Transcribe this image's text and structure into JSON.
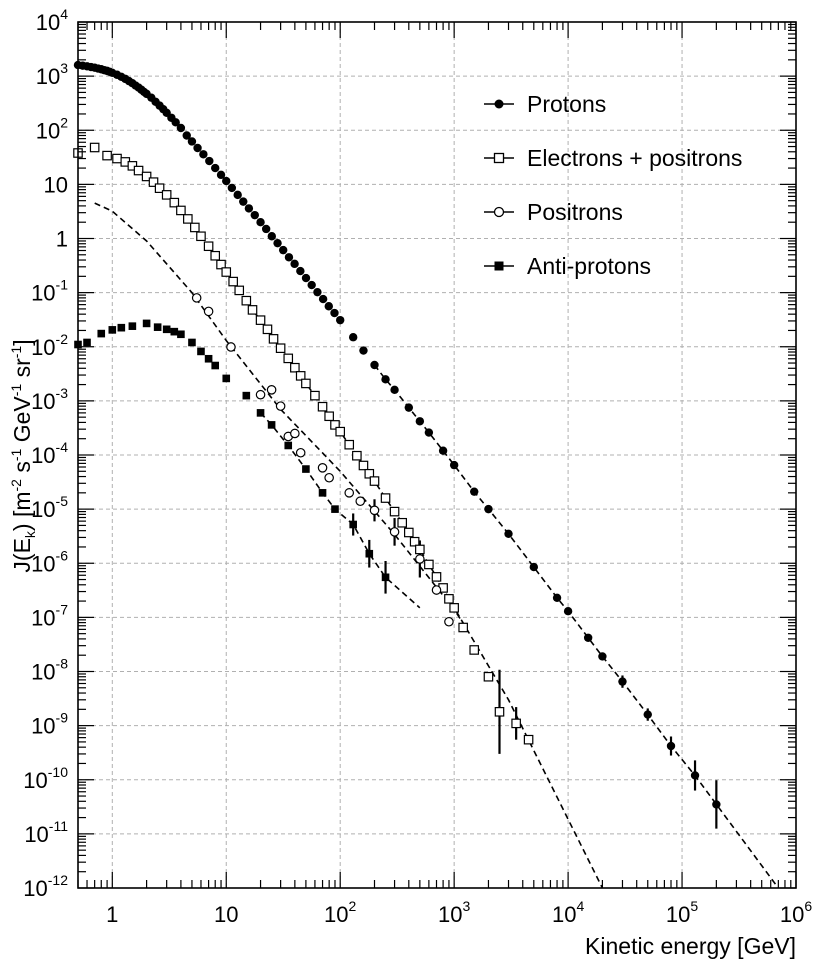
{
  "chart_data": {
    "type": "scatter",
    "xscale": "log",
    "yscale": "log",
    "xlim": [
      0.5,
      1000000
    ],
    "ylim": [
      1e-12,
      10000
    ],
    "xlabel": "Kinetic energy [GeV]",
    "ylabel": "J(E_k) [m^-2 s^-1 GeV^-1 sr^-1]",
    "ylabel_parts": {
      "base": "J(E",
      "sub": "k",
      "close": ")  [m",
      "s1": "-2",
      "s": " s",
      "s2": "-1",
      "gev": " GeV",
      "s3": "-1",
      "sr": " sr",
      "s4": "-1",
      "end": "]"
    },
    "x_ticks": [
      {
        "value": 1,
        "base": "1",
        "exp": ""
      },
      {
        "value": 10,
        "base": "10",
        "exp": ""
      },
      {
        "value": 100,
        "base": "10",
        "exp": "2"
      },
      {
        "value": 1000,
        "base": "10",
        "exp": "3"
      },
      {
        "value": 10000,
        "base": "10",
        "exp": "4"
      },
      {
        "value": 100000,
        "base": "10",
        "exp": "5"
      },
      {
        "value": 1000000,
        "base": "10",
        "exp": "6"
      }
    ],
    "y_ticks": [
      {
        "value": 10000,
        "base": "10",
        "exp": "4"
      },
      {
        "value": 1000,
        "base": "10",
        "exp": "3"
      },
      {
        "value": 100,
        "base": "10",
        "exp": "2"
      },
      {
        "value": 10,
        "base": "10",
        "exp": ""
      },
      {
        "value": 1,
        "base": "1",
        "exp": ""
      },
      {
        "value": 0.1,
        "base": "10",
        "exp": "-1"
      },
      {
        "value": 0.01,
        "base": "10",
        "exp": "-2"
      },
      {
        "value": 0.001,
        "base": "10",
        "exp": "-3"
      },
      {
        "value": 0.0001,
        "base": "10",
        "exp": "-4"
      },
      {
        "value": 1e-05,
        "base": "10",
        "exp": "-5"
      },
      {
        "value": 1e-06,
        "base": "10",
        "exp": "-6"
      },
      {
        "value": 1e-07,
        "base": "10",
        "exp": "-7"
      },
      {
        "value": 1e-08,
        "base": "10",
        "exp": "-8"
      },
      {
        "value": 1e-09,
        "base": "10",
        "exp": "-9"
      },
      {
        "value": 1e-10,
        "base": "10",
        "exp": "-10"
      },
      {
        "value": 1e-11,
        "base": "10",
        "exp": "-11"
      },
      {
        "value": 1e-12,
        "base": "10",
        "exp": "-12"
      }
    ],
    "grid": true,
    "legend_position": "top-right",
    "series": [
      {
        "name": "Protons",
        "marker": "filled-circle",
        "points": [
          [
            0.5,
            1600
          ],
          [
            0.55,
            1560
          ],
          [
            0.6,
            1520
          ],
          [
            0.65,
            1470
          ],
          [
            0.7,
            1430
          ],
          [
            0.75,
            1380
          ],
          [
            0.8,
            1340
          ],
          [
            0.85,
            1290
          ],
          [
            0.9,
            1250
          ],
          [
            0.95,
            1200
          ],
          [
            1.0,
            1150
          ],
          [
            1.1,
            1060
          ],
          [
            1.2,
            970
          ],
          [
            1.3,
            890
          ],
          [
            1.4,
            810
          ],
          [
            1.5,
            740
          ],
          [
            1.6,
            670
          ],
          [
            1.7,
            615
          ],
          [
            1.8,
            560
          ],
          [
            1.9,
            510
          ],
          [
            2.0,
            470
          ],
          [
            2.2,
            400
          ],
          [
            2.4,
            335
          ],
          [
            2.6,
            285
          ],
          [
            2.8,
            245
          ],
          [
            3.0,
            210
          ],
          [
            3.3,
            170
          ],
          [
            3.6,
            140
          ],
          [
            4.0,
            110
          ],
          [
            4.5,
            80
          ],
          [
            5.0,
            62
          ],
          [
            5.6,
            47
          ],
          [
            6.3,
            36
          ],
          [
            7.1,
            27
          ],
          [
            8.0,
            20
          ],
          [
            9.0,
            15
          ],
          [
            10,
            11.5
          ],
          [
            11.2,
            8.6
          ],
          [
            12.6,
            6.4
          ],
          [
            14.1,
            4.8
          ],
          [
            15.8,
            3.6
          ],
          [
            17.8,
            2.7
          ],
          [
            20,
            2.0
          ],
          [
            22.4,
            1.5
          ],
          [
            25.1,
            1.1
          ],
          [
            28.2,
            0.82
          ],
          [
            31.6,
            0.61
          ],
          [
            35.5,
            0.45
          ],
          [
            39.8,
            0.34
          ],
          [
            44.7,
            0.25
          ],
          [
            50.1,
            0.186
          ],
          [
            56.2,
            0.138
          ],
          [
            63.1,
            0.102
          ],
          [
            70.8,
            0.076
          ],
          [
            79.4,
            0.056
          ],
          [
            89.1,
            0.042
          ],
          [
            100,
            0.031
          ],
          [
            130,
            0.015
          ],
          [
            160,
            0.0085
          ],
          [
            200,
            0.0046
          ],
          [
            250,
            0.0025
          ],
          [
            300,
            0.0016
          ],
          [
            400,
            0.00075
          ],
          [
            500,
            0.00042
          ],
          [
            600,
            0.00026
          ],
          [
            800,
            0.00012
          ],
          [
            1000,
            6.5e-05
          ],
          [
            1500,
            2.1e-05
          ],
          [
            2000,
            1e-05
          ],
          [
            3000,
            3.5e-06
          ],
          [
            5000,
            8.5e-07
          ],
          [
            8000,
            2.3e-07
          ],
          [
            10000,
            1.3e-07
          ],
          [
            15000,
            4.2e-08
          ],
          [
            20000,
            1.9e-08
          ],
          [
            30000,
            6.5e-09
          ],
          [
            50000,
            1.6e-09
          ],
          [
            80000,
            4.2e-10
          ],
          [
            130000,
            1.2e-10
          ],
          [
            200000,
            3.5e-11
          ]
        ],
        "errors": [
          [
            30000,
            1.3
          ],
          [
            50000,
            1.3
          ],
          [
            80000,
            1.5
          ],
          [
            130000,
            1.9
          ],
          [
            200000,
            2.8
          ]
        ]
      },
      {
        "name": "Electrons + positrons",
        "marker": "open-square",
        "points": [
          [
            0.5,
            38
          ],
          [
            0.7,
            48
          ],
          [
            0.9,
            34
          ],
          [
            1.1,
            30
          ],
          [
            1.3,
            26
          ],
          [
            1.5,
            22
          ],
          [
            1.7,
            18
          ],
          [
            2.0,
            14
          ],
          [
            2.3,
            11
          ],
          [
            2.6,
            8.5
          ],
          [
            3.0,
            6.4
          ],
          [
            3.5,
            4.6
          ],
          [
            4.0,
            3.3
          ],
          [
            4.6,
            2.3
          ],
          [
            5.3,
            1.6
          ],
          [
            6.0,
            1.1
          ],
          [
            7.0,
            0.72
          ],
          [
            8.0,
            0.48
          ],
          [
            9.0,
            0.33
          ],
          [
            10,
            0.24
          ],
          [
            11.5,
            0.16
          ],
          [
            13,
            0.11
          ],
          [
            15,
            0.071
          ],
          [
            17,
            0.048
          ],
          [
            20,
            0.031
          ],
          [
            23,
            0.021
          ],
          [
            26,
            0.014
          ],
          [
            30,
            0.0094
          ],
          [
            35,
            0.0061
          ],
          [
            40,
            0.0041
          ],
          [
            45,
            0.0029
          ],
          [
            50,
            0.0021
          ],
          [
            60,
            0.00125
          ],
          [
            70,
            0.00078
          ],
          [
            80,
            0.00052
          ],
          [
            90,
            0.00036
          ],
          [
            100,
            0.00027
          ],
          [
            120,
            0.000155
          ],
          [
            140,
            9.7e-05
          ],
          [
            160,
            6.4e-05
          ],
          [
            180,
            4.5e-05
          ],
          [
            200,
            3.3e-05
          ],
          [
            250,
            1.6e-05
          ],
          [
            300,
            9e-06
          ],
          [
            350,
            5.6e-06
          ],
          [
            400,
            3.7e-06
          ],
          [
            450,
            2.5e-06
          ],
          [
            500,
            1.8e-06
          ],
          [
            600,
            9.5e-07
          ],
          [
            700,
            5.6e-07
          ],
          [
            800,
            3.5e-07
          ],
          [
            900,
            2.2e-07
          ],
          [
            1000,
            1.5e-07
          ],
          [
            1200,
            6.5e-08
          ],
          [
            1500,
            2.5e-08
          ],
          [
            2000,
            8e-09
          ],
          [
            2500,
            1.8e-09
          ],
          [
            3500,
            1.1e-09
          ],
          [
            4500,
            5.5e-10
          ]
        ],
        "errors": [
          [
            2500,
            6
          ],
          [
            3500,
            2
          ]
        ]
      },
      {
        "name": "Positrons",
        "marker": "open-circle",
        "points": [
          [
            5.5,
            0.08
          ],
          [
            7.0,
            0.045
          ],
          [
            11,
            0.0099
          ],
          [
            20,
            0.0013
          ],
          [
            25,
            0.0016
          ],
          [
            30,
            0.0008
          ],
          [
            35,
            0.00022
          ],
          [
            40,
            0.00025
          ],
          [
            45,
            0.00011
          ],
          [
            70,
            5.8e-05
          ],
          [
            80,
            3.8e-05
          ],
          [
            120,
            2e-05
          ],
          [
            150,
            1.4e-05
          ],
          [
            200,
            9.5e-06
          ],
          [
            300,
            3.8e-06
          ],
          [
            500,
            1.2e-06
          ],
          [
            700,
            3.2e-07
          ],
          [
            900,
            8.3e-08
          ]
        ],
        "errors": [
          [
            200,
            1.6
          ],
          [
            300,
            1.8
          ],
          [
            500,
            2.2
          ]
        ]
      },
      {
        "name": "Anti-protons",
        "marker": "filled-square",
        "points": [
          [
            0.5,
            0.011
          ],
          [
            0.6,
            0.012
          ],
          [
            0.8,
            0.0175
          ],
          [
            1.0,
            0.0205
          ],
          [
            1.2,
            0.0225
          ],
          [
            1.5,
            0.024
          ],
          [
            2.0,
            0.027
          ],
          [
            2.5,
            0.023
          ],
          [
            3.0,
            0.021
          ],
          [
            3.5,
            0.019
          ],
          [
            4.0,
            0.017
          ],
          [
            5.0,
            0.012
          ],
          [
            6.0,
            0.0082
          ],
          [
            7.0,
            0.006
          ],
          [
            8.0,
            0.0045
          ],
          [
            10,
            0.0026
          ],
          [
            15,
            0.00125
          ],
          [
            20,
            0.0006
          ],
          [
            25,
            0.00036
          ],
          [
            35,
            0.00015
          ],
          [
            50,
            5.5e-05
          ],
          [
            70,
            2e-05
          ],
          [
            90,
            1e-05
          ],
          [
            130,
            5.2e-06
          ],
          [
            180,
            1.5e-06
          ],
          [
            250,
            5.5e-07
          ]
        ],
        "errors": [
          [
            130,
            1.6
          ],
          [
            180,
            1.8
          ],
          [
            250,
            2
          ]
        ]
      }
    ],
    "fit_curves": [
      {
        "name": "Protons fit",
        "style": "dashed",
        "from": 200,
        "to": 700000
      },
      {
        "name": "Electrons + positrons fit",
        "style": "dashed",
        "from": 10,
        "to": 20000
      },
      {
        "name": "Positrons fit",
        "style": "dashed",
        "from": 0.7,
        "to": 1300
      },
      {
        "name": "Anti-protons fit",
        "style": "dashed",
        "from": 20,
        "to": 500
      }
    ],
    "legend": [
      "Protons",
      "Electrons + positrons",
      "Positrons",
      "Anti-protons"
    ]
  }
}
